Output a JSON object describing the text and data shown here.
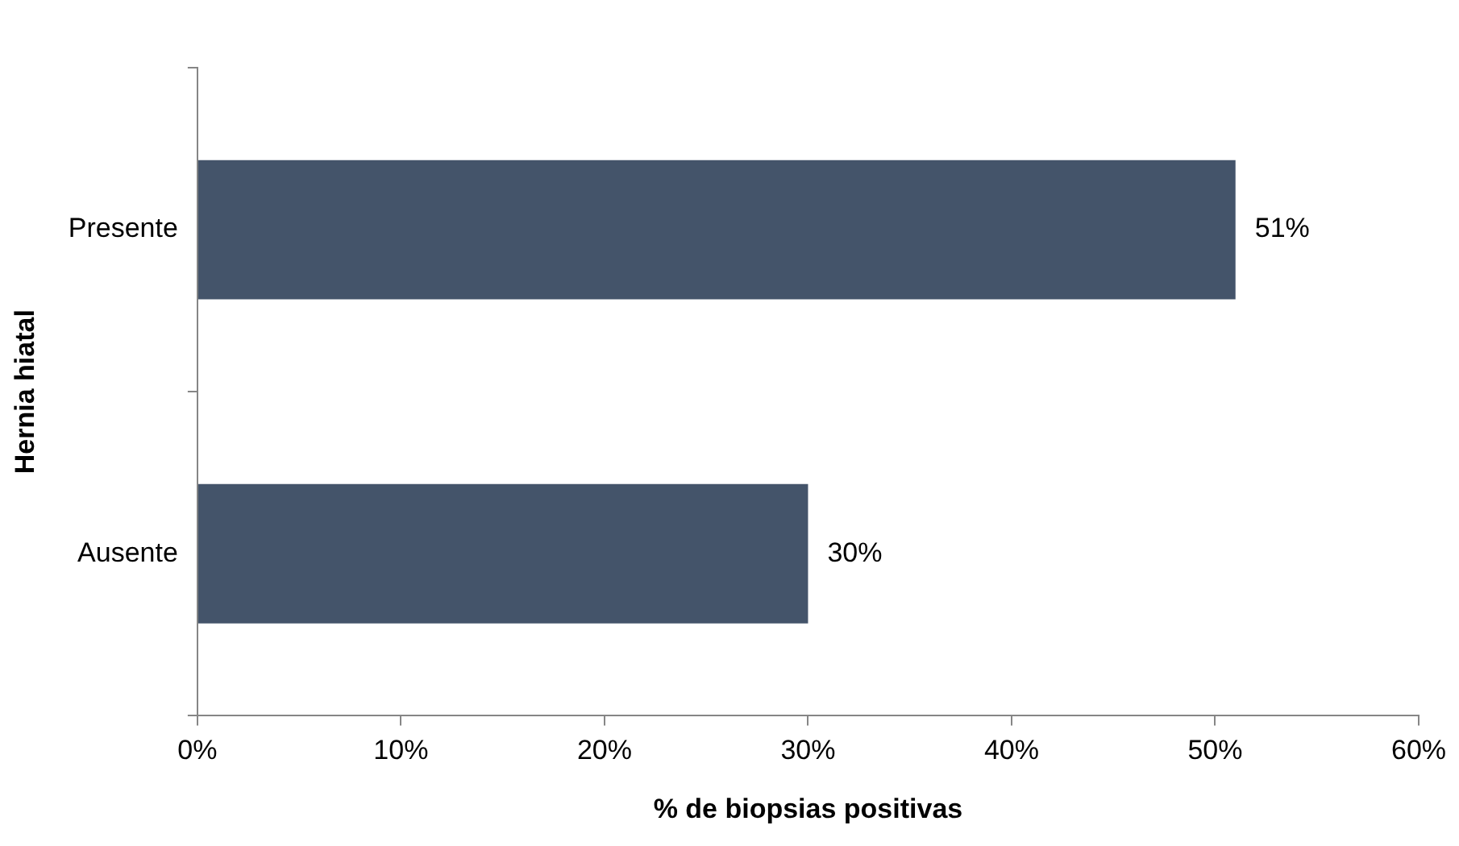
{
  "chart_data": {
    "type": "bar",
    "orientation": "horizontal",
    "xlabel": "% de biopsias positivas",
    "ylabel": "Hernia hiatal",
    "categories": [
      "Presente",
      "Ausente"
    ],
    "values": [
      51,
      30
    ],
    "value_labels": [
      "51%",
      "30%"
    ],
    "color": "#44546a",
    "xlim": [
      0,
      60
    ],
    "xticks": [
      {
        "value": 0,
        "label": "0%"
      },
      {
        "value": 10,
        "label": "10%"
      },
      {
        "value": 20,
        "label": "20%"
      },
      {
        "value": 30,
        "label": "30%"
      },
      {
        "value": 40,
        "label": "40%"
      },
      {
        "value": 50,
        "label": "50%"
      },
      {
        "value": 60,
        "label": "60%"
      }
    ],
    "grid": false,
    "legend": false
  }
}
